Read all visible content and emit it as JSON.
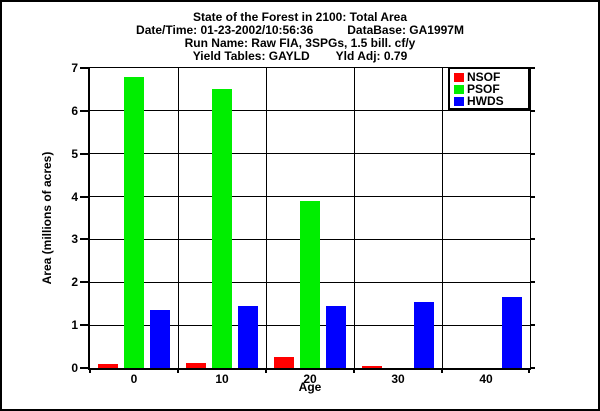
{
  "header": {
    "title": "State of the Forest in 2100: Total Area",
    "datetime": "Date/Time: 01-23-2002/10:56:36",
    "database": "DataBase: GA1997M",
    "run_name": "Run Name: Raw FIA, 3SPGs, 1.5 bill. cf/y",
    "yield_tables": "Yield Tables: GAYLD",
    "yield_adj": "Yld Adj: 0.79"
  },
  "chart_data": {
    "type": "bar",
    "title": "State of the Forest in 2100: Total Area",
    "categories": [
      "0",
      "10",
      "20",
      "30",
      "40"
    ],
    "series": [
      {
        "name": "NSOF",
        "color": "#FF0000",
        "values": [
          0.1,
          0.12,
          0.25,
          0.05,
          0
        ]
      },
      {
        "name": "PSOF",
        "color": "#00EE00",
        "values": [
          6.8,
          6.5,
          3.9,
          0,
          0
        ]
      },
      {
        "name": "HWDS",
        "color": "#0000FF",
        "values": [
          1.35,
          1.45,
          1.45,
          1.55,
          1.65
        ]
      }
    ],
    "xlabel": "Age",
    "ylabel": "Area (millions of acres)",
    "ylim": [
      0,
      7
    ],
    "ytick_step": 1,
    "grid": true,
    "legend_position": "top-right"
  }
}
